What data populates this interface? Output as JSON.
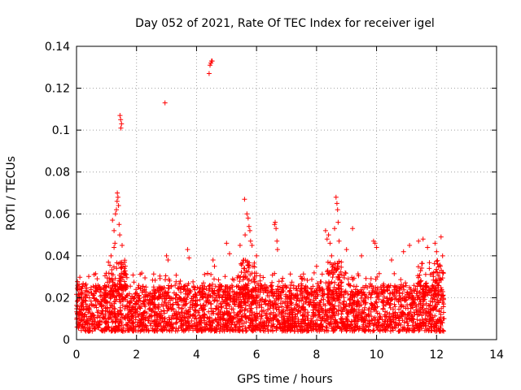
{
  "chart_data": {
    "type": "scatter",
    "title": "Day 052 of 2021, Rate Of TEC Index for receiver igel",
    "xlabel": "GPS time / hours",
    "ylabel": "ROTI / TECUs",
    "xlim": [
      0,
      14
    ],
    "ylim": [
      0,
      0.14
    ],
    "x_ticks": [
      0,
      2,
      4,
      6,
      8,
      10,
      12,
      14
    ],
    "x_tick_labels": [
      "0",
      "2",
      "4",
      "6",
      "8",
      "10",
      "12",
      "14"
    ],
    "y_ticks": [
      0,
      0.02,
      0.04,
      0.06,
      0.08,
      0.1,
      0.12,
      0.14
    ],
    "y_tick_labels": [
      "0",
      "0.02",
      "0.04",
      "0.06",
      "0.08",
      "0.1",
      "0.12",
      "0.14"
    ],
    "grid": true,
    "marker": "plus",
    "marker_color": "#ff0000",
    "series": [
      {
        "name": "ROTI",
        "note": "dense band of points between roughly 0.003 and 0.028 TECU/s from 0 to 12.25 h; outliers listed below",
        "outliers": [
          [
            1.2,
            0.057
          ],
          [
            1.25,
            0.052
          ],
          [
            1.28,
            0.046
          ],
          [
            1.3,
            0.06
          ],
          [
            1.33,
            0.062
          ],
          [
            1.35,
            0.066
          ],
          [
            1.36,
            0.07
          ],
          [
            1.38,
            0.068
          ],
          [
            1.4,
            0.064
          ],
          [
            1.42,
            0.055
          ],
          [
            1.44,
            0.05
          ],
          [
            1.45,
            0.107
          ],
          [
            1.47,
            0.105
          ],
          [
            1.48,
            0.101
          ],
          [
            1.5,
            0.103
          ],
          [
            1.52,
            0.045
          ],
          [
            1.55,
            0.036
          ],
          [
            1.6,
            0.034
          ],
          [
            1.15,
            0.04
          ],
          [
            1.25,
            0.044
          ],
          [
            2.95,
            0.113
          ],
          [
            3.0,
            0.04
          ],
          [
            3.05,
            0.038
          ],
          [
            3.7,
            0.043
          ],
          [
            3.75,
            0.039
          ],
          [
            4.42,
            0.127
          ],
          [
            4.45,
            0.131
          ],
          [
            4.48,
            0.132
          ],
          [
            4.5,
            0.133
          ],
          [
            4.52,
            0.133
          ],
          [
            4.55,
            0.038
          ],
          [
            4.6,
            0.035
          ],
          [
            5.0,
            0.046
          ],
          [
            5.1,
            0.041
          ],
          [
            5.45,
            0.045
          ],
          [
            5.6,
            0.067
          ],
          [
            5.62,
            0.05
          ],
          [
            5.68,
            0.06
          ],
          [
            5.72,
            0.058
          ],
          [
            5.75,
            0.054
          ],
          [
            5.78,
            0.052
          ],
          [
            5.8,
            0.047
          ],
          [
            5.85,
            0.045
          ],
          [
            6.0,
            0.04
          ],
          [
            6.6,
            0.055
          ],
          [
            6.62,
            0.056
          ],
          [
            6.65,
            0.053
          ],
          [
            6.68,
            0.047
          ],
          [
            6.7,
            0.043
          ],
          [
            8.0,
            0.035
          ],
          [
            8.3,
            0.052
          ],
          [
            8.35,
            0.048
          ],
          [
            8.4,
            0.05
          ],
          [
            8.45,
            0.046
          ],
          [
            8.5,
            0.04
          ],
          [
            8.6,
            0.053
          ],
          [
            8.65,
            0.068
          ],
          [
            8.68,
            0.065
          ],
          [
            8.7,
            0.062
          ],
          [
            8.72,
            0.056
          ],
          [
            8.75,
            0.047
          ],
          [
            9.0,
            0.043
          ],
          [
            9.2,
            0.053
          ],
          [
            9.5,
            0.04
          ],
          [
            9.9,
            0.047
          ],
          [
            9.95,
            0.046
          ],
          [
            10.0,
            0.044
          ],
          [
            10.5,
            0.038
          ],
          [
            10.9,
            0.042
          ],
          [
            11.1,
            0.045
          ],
          [
            11.4,
            0.047
          ],
          [
            11.55,
            0.048
          ],
          [
            11.7,
            0.044
          ],
          [
            11.95,
            0.046
          ],
          [
            12.0,
            0.042
          ],
          [
            12.15,
            0.049
          ],
          [
            12.2,
            0.04
          ]
        ]
      }
    ]
  }
}
